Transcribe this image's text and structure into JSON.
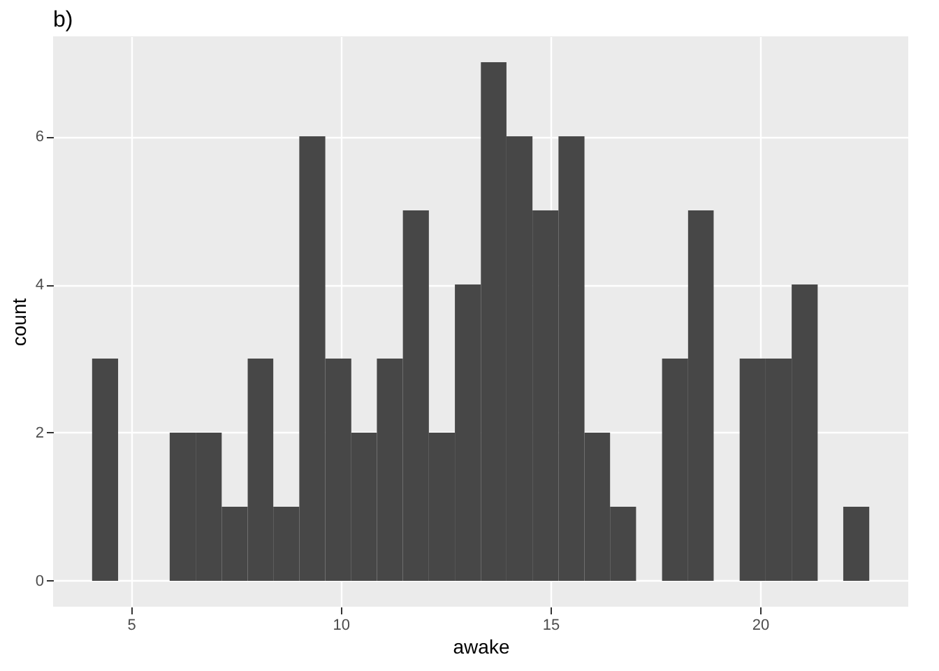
{
  "chart_data": {
    "type": "histogram",
    "title": "b)",
    "xlabel": "awake",
    "ylabel": "count",
    "bins": [
      4.07,
      4.69,
      5.92,
      6.54,
      7.16,
      7.78,
      8.39,
      9.01,
      9.63,
      10.25,
      10.86,
      11.48,
      12.1,
      12.72,
      13.34,
      13.95,
      14.57,
      15.19,
      15.81,
      16.42,
      17.04,
      17.66,
      18.28,
      18.89,
      19.51,
      20.13,
      20.75,
      21.37,
      21.98,
      22.6
    ],
    "values": [
      3,
      0,
      2,
      2,
      1,
      3,
      1,
      6,
      3,
      2,
      3,
      5,
      2,
      4,
      7,
      6,
      5,
      6,
      2,
      1,
      0,
      3,
      5,
      0,
      3,
      3,
      4,
      0,
      1
    ],
    "color": "#474747",
    "xlim": [
      3.14,
      23.53
    ],
    "xticks": [
      5,
      10,
      15,
      20
    ],
    "ylim": [
      -0.35,
      7.35
    ],
    "yticks": [
      0,
      2,
      4,
      6
    ],
    "grid": true
  }
}
